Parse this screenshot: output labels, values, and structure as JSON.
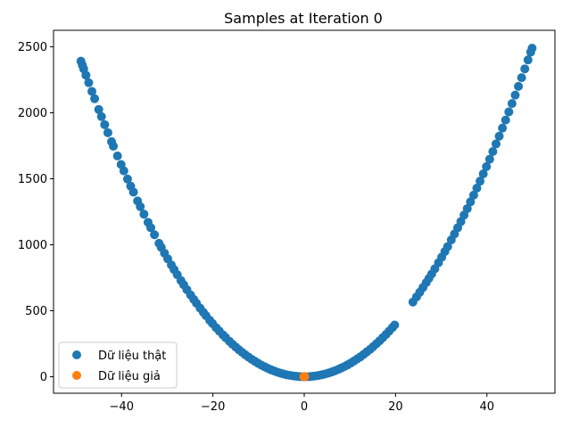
{
  "chart_data": {
    "type": "scatter",
    "title": "Samples at Iteration 0",
    "xlabel": "",
    "ylabel": "",
    "xlim": [
      -54.9,
      54.9
    ],
    "ylim": [
      -125,
      2625
    ],
    "x_ticks": [
      -40,
      -20,
      0,
      20,
      40
    ],
    "x_tick_labels": [
      "−40",
      "−20",
      "0",
      "20",
      "40"
    ],
    "y_ticks": [
      0,
      500,
      1000,
      1500,
      2000,
      2500
    ],
    "y_tick_labels": [
      "0",
      "500",
      "1000",
      "1500",
      "2000",
      "2500"
    ],
    "grid": false,
    "legend_position": "lower-left",
    "series": [
      {
        "name": "Dữ liệu thật",
        "color": "#1f77b4",
        "x": [
          -48.9,
          -48.6,
          -48.3,
          -47.8,
          -47.2,
          -46.5,
          -45.9,
          -45.0,
          -44.4,
          -43.7,
          -43.0,
          -42.2,
          -41.8,
          -40.9,
          -40.1,
          -39.5,
          -38.7,
          -38.0,
          -37.4,
          -36.5,
          -35.9,
          -35.1,
          -34.2,
          -33.6,
          -32.8,
          -31.8,
          -31.3,
          -30.6,
          -29.9,
          -29.1,
          -28.5,
          -27.8,
          -27.0,
          -26.4,
          -25.7,
          -24.9,
          -24.2,
          -23.6,
          -22.8,
          -22.1,
          -21.5,
          -20.7,
          -20.1,
          -19.3,
          -18.6,
          -17.8,
          -17.2,
          -16.4,
          -15.7,
          -15.0,
          -14.3,
          -13.6,
          -12.9,
          -12.2,
          -11.5,
          -10.8,
          -10.1,
          -9.4,
          -8.7,
          -8.0,
          -7.3,
          -6.6,
          -5.9,
          -5.2,
          -4.5,
          -3.8,
          -3.1,
          -2.4,
          -1.7,
          -1.0,
          -0.3,
          0.4,
          1.1,
          1.8,
          2.5,
          3.2,
          3.9,
          4.6,
          5.3,
          6.0,
          6.7,
          7.4,
          8.1,
          8.8,
          9.5,
          10.2,
          10.9,
          11.6,
          12.3,
          13.0,
          13.7,
          14.4,
          15.1,
          15.8,
          16.5,
          17.2,
          17.9,
          18.6,
          19.3,
          19.8,
          23.8,
          24.6,
          25.3,
          26.0,
          26.7,
          27.3,
          27.9,
          28.6,
          29.4,
          30.1,
          30.8,
          31.4,
          32.2,
          32.9,
          33.6,
          34.3,
          35.0,
          35.7,
          36.4,
          37.1,
          37.8,
          38.5,
          39.2,
          39.9,
          40.6,
          41.3,
          42.0,
          42.7,
          43.4,
          44.1,
          44.8,
          45.5,
          46.2,
          46.9,
          47.6,
          48.3,
          49.0,
          49.6,
          49.9
        ],
        "y": [
          2391,
          2362,
          2333,
          2285,
          2228,
          2162,
          2107,
          2025,
          1971,
          1910,
          1849,
          1781,
          1747,
          1673,
          1608,
          1560,
          1498,
          1444,
          1399,
          1332,
          1289,
          1232,
          1170,
          1129,
          1076,
          1011,
          980,
          936,
          894,
          847,
          812,
          773,
          729,
          697,
          660,
          620,
          586,
          557,
          520,
          488,
          462,
          428,
          404,
          372,
          346,
          317,
          296,
          269,
          246,
          225,
          204,
          185,
          166,
          149,
          132,
          117,
          102,
          88,
          76,
          64,
          53,
          44,
          35,
          27,
          20,
          14,
          10,
          6,
          3,
          1,
          0,
          0,
          1,
          3,
          6,
          10,
          15,
          21,
          28,
          36,
          45,
          55,
          66,
          77,
          90,
          104,
          119,
          135,
          151,
          169,
          188,
          207,
          228,
          250,
          272,
          296,
          320,
          346,
          372,
          392,
          566,
          605,
          640,
          676,
          713,
          745,
          778,
          818,
          864,
          906,
          949,
          986,
          1037,
          1082,
          1129,
          1176,
          1225,
          1274,
          1325,
          1376,
          1429,
          1482,
          1537,
          1592,
          1648,
          1706,
          1764,
          1823,
          1884,
          1945,
          2007,
          2070,
          2134,
          2200,
          2266,
          2333,
          2401,
          2460,
          2490
        ]
      },
      {
        "name": "Dữ liệu giả",
        "color": "#ff7f0e",
        "x": [
          0.0,
          0.1,
          -0.1,
          0.05
        ],
        "y": [
          0,
          2,
          1,
          -1
        ]
      }
    ]
  }
}
